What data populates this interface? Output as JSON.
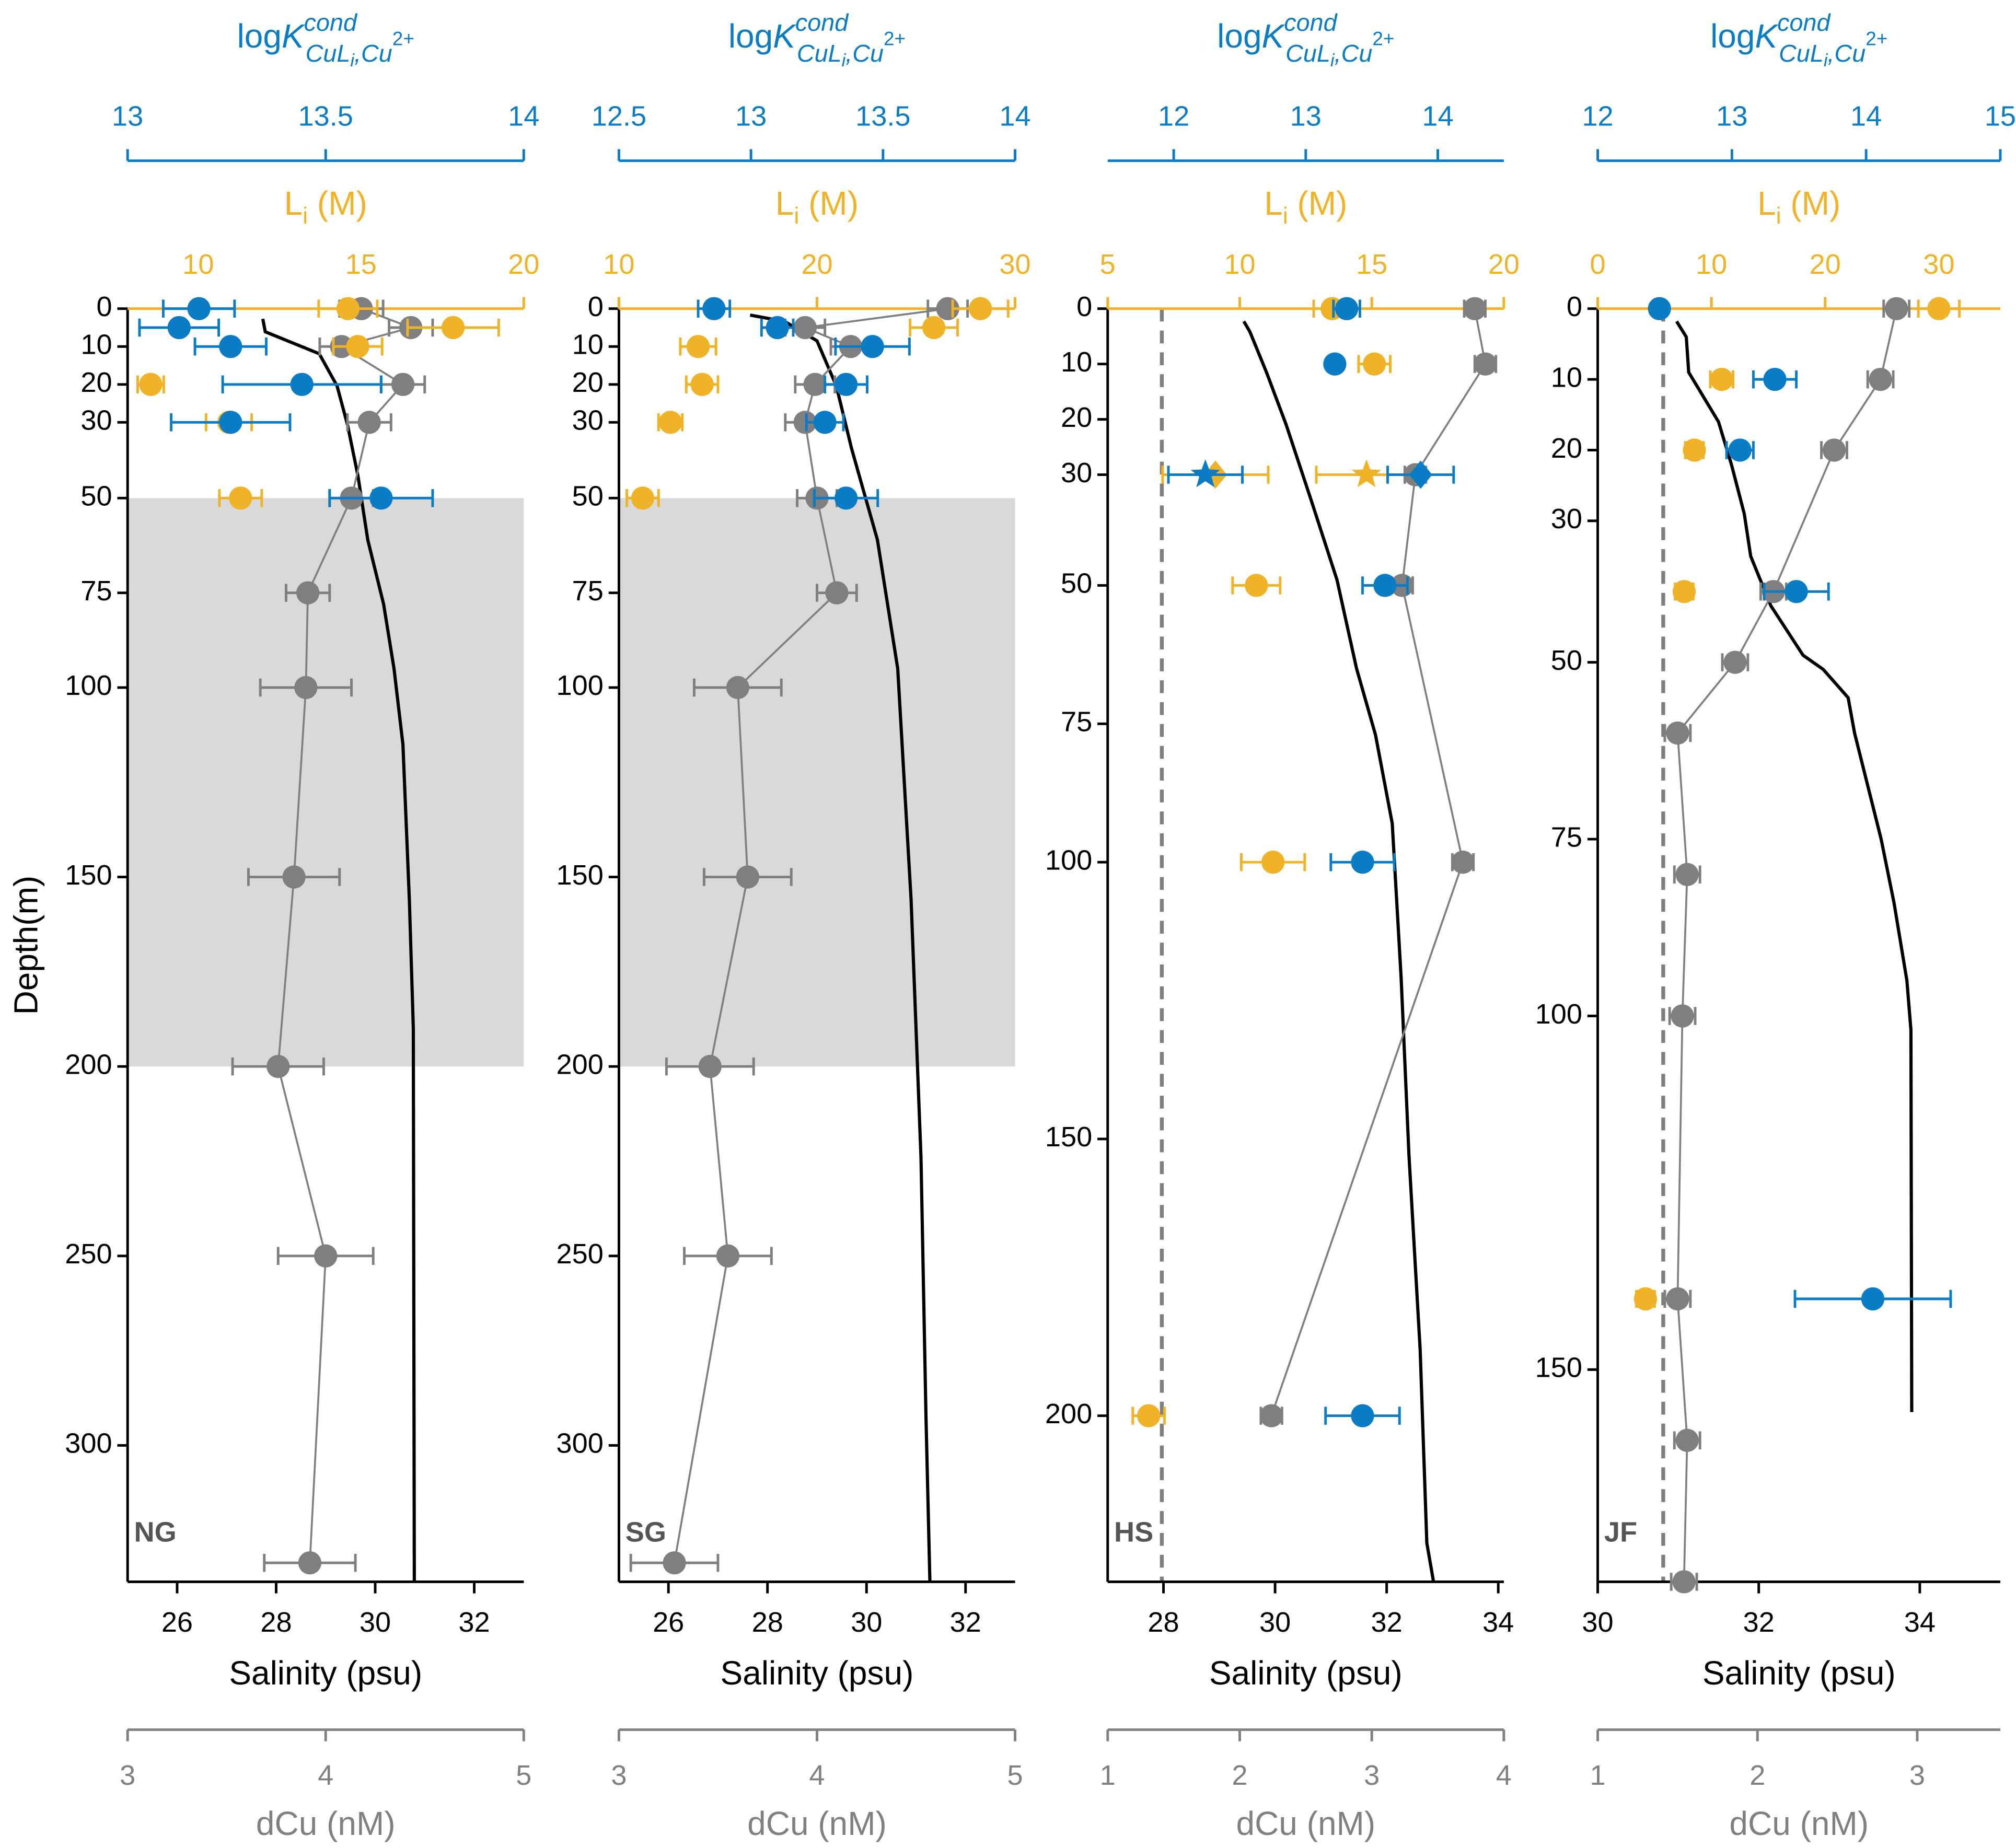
{
  "chart_data": [
    {
      "type": "scatter",
      "label": "NG",
      "ylabel": "Depth(m)",
      "ylim": [
        0,
        336
      ],
      "yticks": [
        0,
        10,
        20,
        30,
        50,
        75,
        100,
        150,
        200,
        250,
        300
      ],
      "shaded": [
        50,
        200
      ],
      "axes": {
        "logk": {
          "label": [
            "log",
            "K",
            "cond",
            "CuL",
            "i",
            ",Cu",
            "2+"
          ],
          "color": "#0a7cc6",
          "xlim": [
            13,
            14
          ],
          "xticks": [
            13,
            13.5,
            14
          ]
        },
        "li": {
          "label": [
            "L",
            "i",
            " (M)"
          ],
          "color": "#f0b226",
          "xlim": [
            7.83,
            20
          ],
          "xticks": [
            10,
            15,
            20
          ]
        },
        "salinity": {
          "label": "Salinity (psu)",
          "color": "#000000",
          "xlim": [
            25,
            33
          ],
          "xticks": [
            26,
            28,
            30,
            32
          ]
        },
        "dcu": {
          "label": "dCu (nM)",
          "color": "#808080",
          "xlim": [
            3,
            5
          ],
          "xticks": [
            3,
            4,
            5
          ]
        }
      },
      "series": [
        {
          "axis": "salinity",
          "connect": true,
          "depth": [
            2.7,
            6.1,
            11.9,
            20.4,
            30.6,
            44,
            61,
            78,
            95,
            115,
            156,
            190,
            336
          ],
          "values": [
            27.73,
            27.78,
            28.87,
            29.23,
            29.44,
            29.65,
            29.85,
            30.17,
            30.38,
            30.56,
            30.69,
            30.77,
            30.79
          ]
        },
        {
          "axis": "dcu",
          "connect": true,
          "depth": [
            0,
            5,
            10,
            20,
            30,
            50,
            75,
            100,
            150,
            200,
            250,
            331
          ],
          "values": [
            4.18,
            4.43,
            4.08,
            4.39,
            4.22,
            4.13,
            3.91,
            3.9,
            3.84,
            3.76,
            4.0,
            3.92
          ],
          "errors": [
            0.11,
            0.11,
            0.11,
            0.11,
            0.11,
            0.11,
            0.11,
            0.23,
            0.23,
            0.23,
            0.24,
            0.23
          ]
        },
        {
          "axis": "li",
          "depth": [
            0,
            5,
            10,
            20,
            30,
            50
          ],
          "values": [
            14.6,
            17.83,
            14.9,
            8.54,
            10.94,
            11.3
          ],
          "errors": [
            0.9,
            1.4,
            0.75,
            0.4,
            0.7,
            0.65
          ]
        },
        {
          "axis": "logk",
          "depth": [
            0,
            5,
            10,
            20,
            30,
            50
          ],
          "values": [
            13.18,
            13.13,
            13.26,
            13.44,
            13.26,
            13.64
          ],
          "errors": [
            0.09,
            0.1,
            0.09,
            0.2,
            0.15,
            0.13
          ]
        }
      ]
    },
    {
      "type": "scatter",
      "label": "SG",
      "ylim": [
        0,
        336
      ],
      "yticks": [
        0,
        10,
        20,
        30,
        50,
        75,
        100,
        150,
        200,
        250,
        300
      ],
      "shaded": [
        50,
        200
      ],
      "axes": {
        "logk": {
          "label": [
            "log",
            "K",
            "cond",
            "CuL",
            "i",
            ",Cu",
            "2+"
          ],
          "color": "#0a7cc6",
          "xlim": [
            12.5,
            14
          ],
          "xticks": [
            12.5,
            13,
            13.5,
            14
          ]
        },
        "li": {
          "label": [
            "L",
            "i",
            " (M)"
          ],
          "color": "#f0b226",
          "xlim": [
            10,
            30
          ],
          "xticks": [
            10,
            20,
            30
          ]
        },
        "salinity": {
          "label": "Salinity (psu)",
          "color": "#000000",
          "xlim": [
            25,
            33
          ],
          "xticks": [
            26,
            28,
            30,
            32
          ]
        },
        "dcu": {
          "label": "dCu (nM)",
          "color": "#808080",
          "xlim": [
            3,
            5
          ],
          "xticks": [
            3,
            4,
            5
          ]
        }
      },
      "series": [
        {
          "axis": "salinity",
          "connect": true,
          "depth": [
            1.7,
            3.4,
            8.5,
            20.4,
            37,
            61,
            95,
            156,
            224,
            292,
            336
          ],
          "values": [
            27.65,
            28.35,
            29.0,
            29.39,
            29.7,
            30.22,
            30.63,
            30.9,
            31.1,
            31.2,
            31.28
          ]
        },
        {
          "axis": "dcu",
          "connect": true,
          "depth": [
            0,
            5,
            10,
            20,
            30,
            50,
            75,
            100,
            150,
            200,
            250,
            331
          ],
          "values": [
            4.66,
            3.94,
            4.17,
            3.99,
            3.94,
            4.0,
            4.1,
            3.6,
            3.65,
            3.46,
            3.55,
            3.28
          ],
          "errors": [
            0.1,
            0.1,
            0.1,
            0.1,
            0.1,
            0.1,
            0.1,
            0.22,
            0.22,
            0.22,
            0.22,
            0.22
          ]
        },
        {
          "axis": "li",
          "depth": [
            0,
            5,
            10,
            20,
            30,
            50
          ],
          "values": [
            28.25,
            25.9,
            14.0,
            14.2,
            12.6,
            11.2
          ],
          "errors": [
            1.4,
            1.2,
            0.9,
            0.8,
            0.6,
            0.8
          ]
        },
        {
          "axis": "logk",
          "depth": [
            0,
            5,
            10,
            20,
            30,
            50
          ],
          "values": [
            12.86,
            13.1,
            13.46,
            13.36,
            13.28,
            13.36
          ],
          "errors": [
            0.06,
            0.06,
            0.14,
            0.08,
            0.07,
            0.12
          ]
        }
      ]
    },
    {
      "type": "scatter",
      "label": "HS",
      "ylim": [
        0,
        230
      ],
      "yticks": [
        0,
        10,
        20,
        30,
        50,
        75,
        100,
        150,
        200
      ],
      "reference_dcu": 1.41,
      "axes": {
        "logk": {
          "label": [
            "log",
            "K",
            "cond",
            "CuL",
            "i",
            ",Cu",
            "2+"
          ],
          "color": "#0a7cc6",
          "xlim": [
            11.5,
            14.5
          ],
          "xticks": [
            12,
            13,
            14
          ]
        },
        "li": {
          "label": [
            "L",
            "i",
            " (M)"
          ],
          "color": "#f0b226",
          "xlim": [
            5,
            20
          ],
          "xticks": [
            5,
            10,
            15,
            20
          ]
        },
        "salinity": {
          "label": "Salinity (psu)",
          "color": "#000000",
          "xlim": [
            27,
            34.1
          ],
          "xticks": [
            28,
            30,
            32,
            34
          ]
        },
        "dcu": {
          "label": "dCu (nM)",
          "color": "#808080",
          "xlim": [
            1,
            4
          ],
          "xticks": [
            1,
            2,
            3,
            4
          ]
        }
      },
      "series": [
        {
          "axis": "salinity",
          "connect": true,
          "depth": [
            2.3,
            4.2,
            11.6,
            21,
            35,
            49,
            65,
            77,
            93,
            121,
            153,
            188,
            223,
            230
          ],
          "values": [
            29.44,
            29.55,
            29.85,
            30.2,
            30.66,
            31.11,
            31.46,
            31.8,
            32.1,
            32.26,
            32.4,
            32.6,
            32.72,
            32.84
          ]
        },
        {
          "axis": "dcu",
          "connect": true,
          "depth": [
            0,
            10,
            30,
            50,
            100,
            200
          ],
          "values": [
            3.78,
            3.86,
            3.33,
            3.23,
            3.69,
            2.24
          ],
          "errors": [
            0.08,
            0.08,
            0.08,
            0.08,
            0.08,
            0.08
          ]
        },
        {
          "axis": "li",
          "depth": [
            0,
            10,
            30,
            30,
            50,
            100,
            200
          ],
          "values": [
            13.5,
            15.1,
            9.08,
            14.8,
            10.63,
            11.26,
            6.55
          ],
          "errors": [
            0.7,
            0.6,
            2.0,
            1.9,
            0.9,
            1.2,
            0.6
          ],
          "markers": [
            "circle",
            "circle",
            "diamond",
            "star",
            "circle",
            "circle",
            "circle"
          ]
        },
        {
          "axis": "logk",
          "depth": [
            0,
            10,
            30,
            30,
            50,
            100,
            200
          ],
          "values": [
            13.31,
            13.22,
            12.24,
            13.87,
            13.6,
            13.43,
            13.43
          ],
          "errors": [
            0.1,
            null,
            0.28,
            0.25,
            0.17,
            0.24,
            0.28
          ],
          "markers": [
            "circle",
            "circle",
            "star",
            "diamond",
            "circle",
            "circle",
            "circle"
          ]
        }
      ]
    },
    {
      "type": "scatter",
      "label": "JF",
      "ylim": [
        0,
        180
      ],
      "yticks": [
        0,
        10,
        20,
        30,
        50,
        75,
        100,
        150
      ],
      "reference_dcu": 1.41,
      "axes": {
        "logk": {
          "label": [
            "log",
            "K",
            "cond",
            "CuL",
            "i",
            ",Cu",
            "2+"
          ],
          "color": "#0a7cc6",
          "xlim": [
            12,
            15
          ],
          "xticks": [
            12,
            13,
            14,
            15
          ]
        },
        "li": {
          "label": [
            "L",
            "i",
            " (M)"
          ],
          "color": "#f0b226",
          "xlim": [
            0,
            35.4
          ],
          "xticks": [
            0,
            10,
            20,
            30
          ]
        },
        "salinity": {
          "label": "Salinity (psu)",
          "color": "#000000",
          "xlim": [
            30,
            35
          ],
          "xticks": [
            30,
            32,
            34
          ]
        },
        "dcu": {
          "label": "dCu (nM)",
          "color": "#808080",
          "xlim": [
            1,
            3.52
          ],
          "xticks": [
            1,
            2,
            3
          ]
        }
      },
      "series": [
        {
          "axis": "salinity",
          "connect": true,
          "depth": [
            1.8,
            4,
            9,
            16,
            22,
            29,
            35,
            42,
            49,
            51,
            55,
            60,
            75,
            84,
            95,
            102,
            156
          ],
          "values": [
            30.98,
            31.1,
            31.13,
            31.5,
            31.66,
            31.82,
            31.9,
            32.15,
            32.55,
            32.8,
            33.11,
            33.19,
            33.52,
            33.68,
            33.84,
            33.89,
            33.9
          ]
        },
        {
          "axis": "dcu",
          "connect": true,
          "depth": [
            0,
            10,
            20,
            40,
            50,
            60,
            80,
            100,
            140,
            160,
            180
          ],
          "values": [
            2.87,
            2.77,
            2.48,
            2.1,
            1.86,
            1.5,
            1.56,
            1.53,
            1.5,
            1.56,
            1.54
          ],
          "errors": [
            0.08,
            0.08,
            0.08,
            0.08,
            0.08,
            0.08,
            0.08,
            0.08,
            0.08,
            0.08,
            0.08
          ]
        },
        {
          "axis": "li",
          "depth": [
            0,
            10,
            20,
            40,
            140
          ],
          "values": [
            30.0,
            10.9,
            8.5,
            7.6,
            4.2
          ],
          "errors": [
            1.8,
            1.0,
            0.8,
            0.8,
            0.8
          ]
        },
        {
          "axis": "logk",
          "depth": [
            0,
            10,
            20,
            40,
            140
          ],
          "values": [
            12.46,
            13.32,
            13.06,
            13.48,
            14.05
          ],
          "errors": [
            null,
            0.16,
            0.1,
            0.24,
            0.58
          ]
        }
      ]
    }
  ]
}
